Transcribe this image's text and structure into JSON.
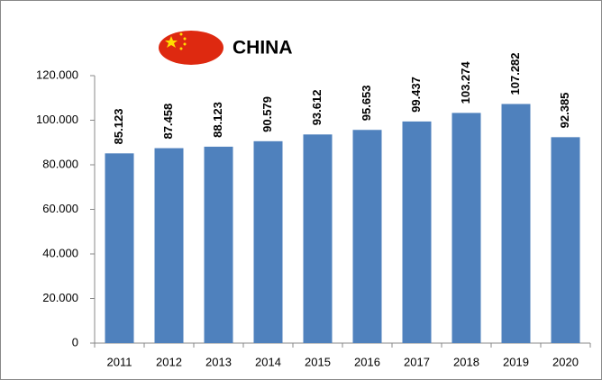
{
  "chart_data": {
    "type": "bar",
    "title": "CHINA",
    "categories": [
      "2011",
      "2012",
      "2013",
      "2014",
      "2015",
      "2016",
      "2017",
      "2018",
      "2019",
      "2020"
    ],
    "values": [
      85123,
      87458,
      88123,
      90579,
      93612,
      95653,
      99437,
      103274,
      107282,
      92385
    ],
    "value_labels": [
      "85.123",
      "87.458",
      "88.123",
      "90.579",
      "93.612",
      "95.653",
      "99.437",
      "103.274",
      "107.282",
      "92.385"
    ],
    "color": "#4f81bd",
    "ylim": [
      0,
      120000
    ],
    "yticks": [
      0,
      {
        "value": 20000,
        "label": "20.000"
      },
      {
        "value": 40000,
        "label": "40.000"
      },
      {
        "value": 60000,
        "label": "60.000"
      },
      {
        "value": 80000,
        "label": "80.000"
      },
      {
        "value": 100000,
        "label": "100.000"
      },
      {
        "value": 120000,
        "label": "120.000"
      }
    ],
    "grid": false
  }
}
